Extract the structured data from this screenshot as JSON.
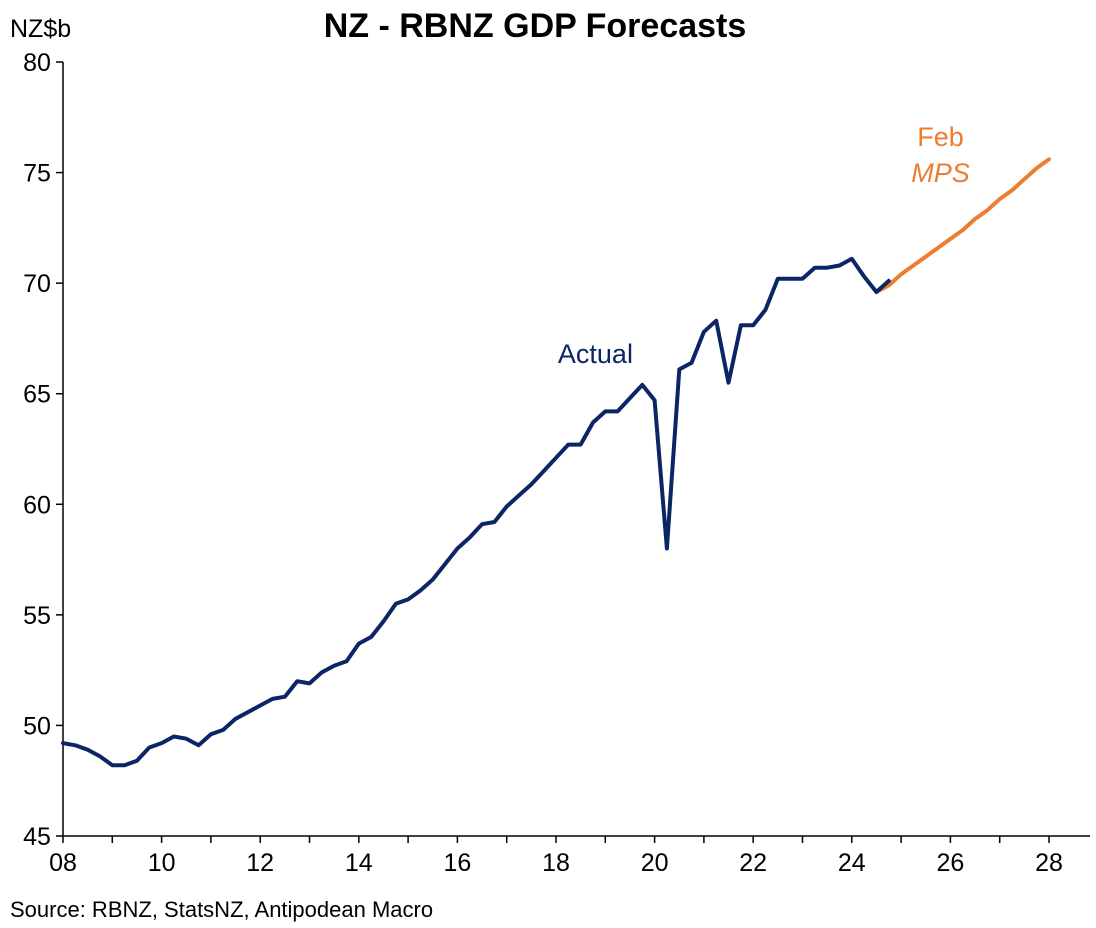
{
  "chart_data": {
    "type": "line",
    "title": "NZ - RBNZ GDP Forecasts",
    "ylabel": "NZ$b",
    "xlabel": "",
    "ylim": [
      45,
      80
    ],
    "xlim": [
      2008,
      2028.75
    ],
    "y_ticks": [
      "45",
      "50",
      "55",
      "60",
      "65",
      "70",
      "75",
      "80"
    ],
    "x_ticks": [
      {
        "year": 2008,
        "label": "08"
      },
      {
        "year": 2010,
        "label": "10"
      },
      {
        "year": 2012,
        "label": "12"
      },
      {
        "year": 2014,
        "label": "14"
      },
      {
        "year": 2016,
        "label": "16"
      },
      {
        "year": 2018,
        "label": "18"
      },
      {
        "year": 2020,
        "label": "20"
      },
      {
        "year": 2022,
        "label": "22"
      },
      {
        "year": 2024,
        "label": "24"
      },
      {
        "year": 2026,
        "label": "26"
      },
      {
        "year": 2028,
        "label": "28"
      }
    ],
    "grid": false,
    "series": [
      {
        "name": "Actual",
        "color": "#0b2565",
        "label_lines": [
          {
            "text": "Actual",
            "italic": false
          }
        ],
        "label_anchor": {
          "x": 2018.8,
          "y": 66.4
        },
        "x": [
          2008.0,
          2008.25,
          2008.5,
          2008.75,
          2009.0,
          2009.25,
          2009.5,
          2009.75,
          2010.0,
          2010.25,
          2010.5,
          2010.75,
          2011.0,
          2011.25,
          2011.5,
          2011.75,
          2012.0,
          2012.25,
          2012.5,
          2012.75,
          2013.0,
          2013.25,
          2013.5,
          2013.75,
          2014.0,
          2014.25,
          2014.5,
          2014.75,
          2015.0,
          2015.25,
          2015.5,
          2015.75,
          2016.0,
          2016.25,
          2016.5,
          2016.75,
          2017.0,
          2017.25,
          2017.5,
          2017.75,
          2018.0,
          2018.25,
          2018.5,
          2018.75,
          2019.0,
          2019.25,
          2019.5,
          2019.75,
          2020.0,
          2020.25,
          2020.5,
          2020.75,
          2021.0,
          2021.25,
          2021.5,
          2021.75,
          2022.0,
          2022.25,
          2022.5,
          2022.75,
          2023.0,
          2023.25,
          2023.5,
          2023.75,
          2024.0,
          2024.25,
          2024.5,
          2024.75
        ],
        "values": [
          49.2,
          49.1,
          48.9,
          48.6,
          48.2,
          48.2,
          48.4,
          49.0,
          49.2,
          49.5,
          49.4,
          49.1,
          49.6,
          49.8,
          50.3,
          50.6,
          50.9,
          51.2,
          51.3,
          52.0,
          51.9,
          52.4,
          52.7,
          52.9,
          53.7,
          54.0,
          54.7,
          55.5,
          55.7,
          56.1,
          56.6,
          57.3,
          58.0,
          58.5,
          59.1,
          59.2,
          59.9,
          60.4,
          60.9,
          61.5,
          62.1,
          62.7,
          62.7,
          63.7,
          64.2,
          64.2,
          64.8,
          65.4,
          64.7,
          58.0,
          66.1,
          66.4,
          67.8,
          68.3,
          65.5,
          68.1,
          68.1,
          68.8,
          70.2,
          70.2,
          70.2,
          70.7,
          70.7,
          70.8,
          71.1,
          70.3,
          69.6,
          70.1
        ]
      },
      {
        "name": "Feb MPS",
        "color": "#ed7d31",
        "label_lines": [
          {
            "text": "Feb",
            "italic": false
          },
          {
            "text": "MPS",
            "italic": true
          }
        ],
        "label_anchor": {
          "x": 2025.8,
          "y": 76.2
        },
        "x": [
          2024.5,
          2024.75,
          2025.0,
          2025.25,
          2025.5,
          2025.75,
          2026.0,
          2026.25,
          2026.5,
          2026.75,
          2027.0,
          2027.25,
          2027.5,
          2027.75,
          2028.0
        ],
        "values": [
          69.6,
          69.9,
          70.4,
          70.8,
          71.2,
          71.6,
          72.0,
          72.4,
          72.9,
          73.3,
          73.8,
          74.2,
          74.7,
          75.2,
          75.6
        ]
      }
    ]
  },
  "footer": {
    "source": "Source: RBNZ, StatsNZ, Antipodean Macro"
  }
}
